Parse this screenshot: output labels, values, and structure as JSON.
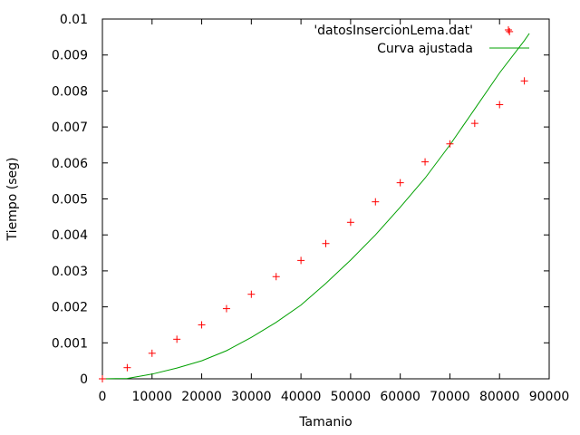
{
  "chart_data": {
    "type": "scatter",
    "xlabel": "Tamanio",
    "ylabel": "Tiempo (seg)",
    "xlim": [
      0,
      90000
    ],
    "ylim": [
      0,
      0.01
    ],
    "x_ticks": [
      "0",
      "10000",
      "20000",
      "30000",
      "40000",
      "50000",
      "60000",
      "70000",
      "80000",
      "90000"
    ],
    "y_ticks": [
      "0",
      "0.001",
      "0.002",
      "0.003",
      "0.004",
      "0.005",
      "0.006",
      "0.007",
      "0.008",
      "0.009",
      "0.01"
    ],
    "grid": false,
    "legend_position": "top-right",
    "series": [
      {
        "name": "'datosInsercionLema.dat'",
        "kind": "points",
        "marker": "+",
        "color": "#ff0000",
        "x": [
          0,
          5000,
          10000,
          15000,
          20000,
          25000,
          30000,
          35000,
          40000,
          45000,
          50000,
          55000,
          60000,
          65000,
          70000,
          75000,
          80000,
          82000,
          85000
        ],
        "y": [
          0.0,
          0.00031,
          0.00071,
          0.0011,
          0.0015,
          0.00195,
          0.00235,
          0.00284,
          0.00329,
          0.00376,
          0.00435,
          0.00492,
          0.00545,
          0.00603,
          0.00653,
          0.0071,
          0.00762,
          0.00965,
          0.00828
        ]
      },
      {
        "name": "Curva ajustada",
        "kind": "line",
        "color": "#00a000",
        "x": [
          0,
          5000,
          10000,
          15000,
          20000,
          25000,
          30000,
          35000,
          40000,
          45000,
          50000,
          55000,
          60000,
          65000,
          70000,
          75000,
          80000,
          85000,
          86000
        ],
        "y": [
          0.0,
          1e-05,
          0.00013,
          0.0003,
          0.0005,
          0.00078,
          0.00115,
          0.00157,
          0.00205,
          0.00265,
          0.0033,
          0.004,
          0.00477,
          0.00558,
          0.0065,
          0.0075,
          0.0085,
          0.0094,
          0.0096
        ]
      }
    ]
  }
}
